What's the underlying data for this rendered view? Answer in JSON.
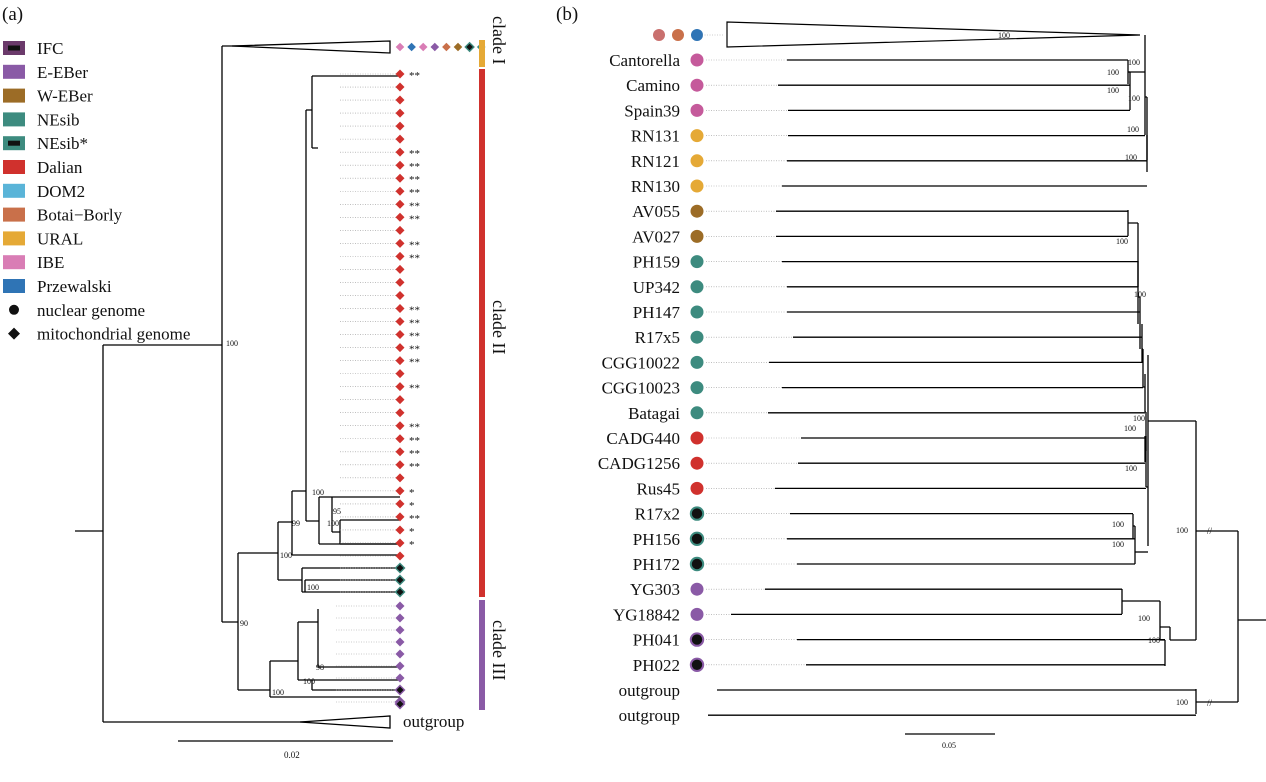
{
  "panel_a": {
    "label": "(a)",
    "legend": [
      {
        "label": "IFC",
        "color": "#6b3a6b",
        "marker": "box-dark"
      },
      {
        "label": "E-EBer",
        "color": "#8a5aa6",
        "marker": "box"
      },
      {
        "label": "W-EBer",
        "color": "#9c6c26",
        "marker": "box"
      },
      {
        "label": "NEsib",
        "color": "#3d8b7f",
        "marker": "box"
      },
      {
        "label": "NEsib*",
        "color": "#3d8b7f",
        "marker": "box-dark"
      },
      {
        "label": "Dalian",
        "color": "#d0312d",
        "marker": "box"
      },
      {
        "label": "DOM2",
        "color": "#5ab4d8",
        "marker": "box"
      },
      {
        "label": "Botai−Borly",
        "color": "#c9704a",
        "marker": "box"
      },
      {
        "label": "URAL",
        "color": "#e5a936",
        "marker": "box"
      },
      {
        "label": "IBE",
        "color": "#d97db5",
        "marker": "box"
      },
      {
        "label": "Przewalski",
        "color": "#2f74b5",
        "marker": "box"
      },
      {
        "label": "nuclear genome",
        "color": "#111111",
        "marker": "circle"
      },
      {
        "label": "mitochondrial genome",
        "color": "#111111",
        "marker": "diamond"
      }
    ],
    "clades": [
      {
        "label": "clade I",
        "color": "#e5a936"
      },
      {
        "label": "clade II",
        "color": "#d0312d"
      },
      {
        "label": "clade III",
        "color": "#8a5aa6"
      }
    ],
    "support": {
      "root": "100",
      "b90": "90",
      "b100a": "100",
      "b100b": "100",
      "b99": "99",
      "b100c": "100",
      "b95": "95",
      "b100d": "100",
      "b100e": "100",
      "b98": "98",
      "b100f": "100"
    },
    "top_diamond_colors": [
      "#d97db5",
      "#2f74b5",
      "#d97db5",
      "#8a5aa6",
      "#c9704a",
      "#9c6c26",
      "#3d8b7f-dark",
      "#3d8b7f"
    ],
    "clade2_marks": [
      "**",
      "",
      "",
      "",
      "",
      "",
      "**",
      "**",
      "**",
      "**",
      "**",
      "**",
      "",
      "**",
      "**",
      "",
      "",
      "",
      "**",
      "**",
      "**",
      "**",
      "**",
      "",
      "**",
      "",
      "",
      "**",
      "**",
      "**",
      "**",
      "",
      "*",
      "*",
      "**",
      "*",
      "*",
      ""
    ],
    "outgroup_label": "outgroup",
    "scale_label": "0.02"
  },
  "panel_b": {
    "label": "(b)",
    "top_dots": [
      "#c9706e",
      "#c9704a",
      "#2f74b5"
    ],
    "top_support": "100",
    "taxa": [
      {
        "name": "Cantorella",
        "color": "#c55a9b",
        "dark": false
      },
      {
        "name": "Camino",
        "color": "#c55a9b",
        "dark": false
      },
      {
        "name": "Spain39",
        "color": "#c55a9b",
        "dark": false
      },
      {
        "name": "RN131",
        "color": "#e5a936",
        "dark": false
      },
      {
        "name": "RN121",
        "color": "#e5a936",
        "dark": false
      },
      {
        "name": "RN130",
        "color": "#e5a936",
        "dark": false
      },
      {
        "name": "AV055",
        "color": "#9c6c26",
        "dark": false
      },
      {
        "name": "AV027",
        "color": "#9c6c26",
        "dark": false
      },
      {
        "name": "PH159",
        "color": "#3d8b7f",
        "dark": false
      },
      {
        "name": "UP342",
        "color": "#3d8b7f",
        "dark": false
      },
      {
        "name": "PH147",
        "color": "#3d8b7f",
        "dark": false
      },
      {
        "name": "R17x5",
        "color": "#3d8b7f",
        "dark": false
      },
      {
        "name": "CGG10022",
        "color": "#3d8b7f",
        "dark": false
      },
      {
        "name": "CGG10023",
        "color": "#3d8b7f",
        "dark": false
      },
      {
        "name": "Batagai",
        "color": "#3d8b7f",
        "dark": false
      },
      {
        "name": "CADG440",
        "color": "#d0312d",
        "dark": false
      },
      {
        "name": "CADG1256",
        "color": "#d0312d",
        "dark": false
      },
      {
        "name": "Rus45",
        "color": "#d0312d",
        "dark": false
      },
      {
        "name": "R17x2",
        "color": "#3d8b7f",
        "dark": true
      },
      {
        "name": "PH156",
        "color": "#3d8b7f",
        "dark": true
      },
      {
        "name": "PH172",
        "color": "#3d8b7f",
        "dark": true
      },
      {
        "name": "YG303",
        "color": "#8a5aa6",
        "dark": false
      },
      {
        "name": "YG18842",
        "color": "#8a5aa6",
        "dark": false
      },
      {
        "name": "PH041",
        "color": "#8a5aa6",
        "dark": true
      },
      {
        "name": "PH022",
        "color": "#8a5aa6",
        "dark": true
      },
      {
        "name": "outgroup",
        "color": "",
        "dark": false
      },
      {
        "name": "outgroup",
        "color": "",
        "dark": false
      }
    ],
    "support": {
      "s1": "100",
      "s2": "100",
      "s3": "100",
      "s4": "100",
      "s5": "100",
      "s6": "100",
      "s7": "100",
      "s8": "100",
      "s9": "100",
      "s10": "100",
      "s11": "100",
      "s12": "100",
      "s13": "100",
      "s14": "100",
      "s15": "100",
      "s16": "100",
      "s17": "100",
      "s18": "100"
    },
    "break_mark": "//",
    "scale_label": "0.05"
  }
}
